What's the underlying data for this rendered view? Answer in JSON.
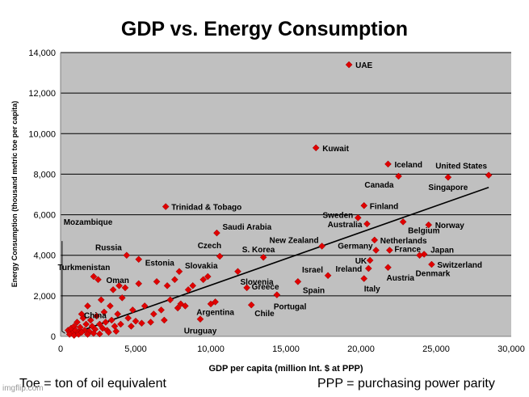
{
  "chart_data": {
    "type": "scatter",
    "title": "GDP vs. Energy Consumption",
    "xlabel": "GDP per capita (million Int. $ at PPP)",
    "ylabel": "Energy Consumption (thousand metric toe per capita)",
    "xlim": [
      0,
      30000
    ],
    "ylim": [
      0,
      14000
    ],
    "xticks": [
      "0",
      "5,000",
      "10,000",
      "15,000",
      "20,000",
      "25,000",
      "30,000"
    ],
    "yticks": [
      "0",
      "2,000",
      "4,000",
      "6,000",
      "8,000",
      "10,000",
      "12,000",
      "14,000"
    ],
    "grid": true,
    "legend": "none",
    "colors": {
      "marker": "#e00000",
      "background": "#c0c0c0",
      "trend": "#000000",
      "gridline": "#000000"
    },
    "labeled_points": [
      {
        "label": "UAE",
        "x": 19200,
        "y": 13400
      },
      {
        "label": "Kuwait",
        "x": 17000,
        "y": 9300
      },
      {
        "label": "Iceland",
        "x": 21800,
        "y": 8500
      },
      {
        "label": "Canada",
        "x": 22500,
        "y": 7900
      },
      {
        "label": "United States",
        "x": 28500,
        "y": 7950
      },
      {
        "label": "Singapore",
        "x": 25800,
        "y": 7850
      },
      {
        "label": "Trinidad & Tobago",
        "x": 7000,
        "y": 6400
      },
      {
        "label": "Sweden",
        "x": 19800,
        "y": 5850
      },
      {
        "label": "Finland",
        "x": 20200,
        "y": 6450
      },
      {
        "label": "Australia",
        "x": 20400,
        "y": 5550
      },
      {
        "label": "Norway",
        "x": 24500,
        "y": 5500
      },
      {
        "label": "Belgium",
        "x": 22800,
        "y": 5650
      },
      {
        "label": "Netherlands",
        "x": 20900,
        "y": 4750
      },
      {
        "label": "Saudi Arabia",
        "x": 10400,
        "y": 5100
      },
      {
        "label": "Russia",
        "x": 4400,
        "y": 4000
      },
      {
        "label": "Czech",
        "x": 10600,
        "y": 3950
      },
      {
        "label": "New Zealand",
        "x": 17400,
        "y": 4450
      },
      {
        "label": "Germany",
        "x": 21000,
        "y": 4250
      },
      {
        "label": "France",
        "x": 21900,
        "y": 4250
      },
      {
        "label": "Japan",
        "x": 24200,
        "y": 4050
      },
      {
        "label": "S. Korea",
        "x": 13500,
        "y": 3900
      },
      {
        "label": "Estonia",
        "x": 5200,
        "y": 3800
      },
      {
        "label": "UK",
        "x": 20600,
        "y": 3750
      },
      {
        "label": "Switzerland",
        "x": 24700,
        "y": 3550
      },
      {
        "label": "Denmark",
        "x": 23900,
        "y": 4000
      },
      {
        "label": "Turkmenistan",
        "x": 2200,
        "y": 2950
      },
      {
        "label": "Slovakia",
        "x": 7900,
        "y": 3200
      },
      {
        "label": "Ireland",
        "x": 20500,
        "y": 3350
      },
      {
        "label": "Israel",
        "x": 17800,
        "y": 3000
      },
      {
        "label": "Austria",
        "x": 21800,
        "y": 3400
      },
      {
        "label": "Oman",
        "x": 2500,
        "y": 2800
      },
      {
        "label": "Slovenia",
        "x": 11800,
        "y": 3200
      },
      {
        "label": "Greece",
        "x": 12400,
        "y": 2400
      },
      {
        "label": "Italy",
        "x": 20200,
        "y": 2850
      },
      {
        "label": "Spain",
        "x": 15800,
        "y": 2700
      },
      {
        "label": "Argentina",
        "x": 10300,
        "y": 1700
      },
      {
        "label": "Portugal",
        "x": 14400,
        "y": 2050
      },
      {
        "label": "Chile",
        "x": 12700,
        "y": 1550
      },
      {
        "label": "China",
        "x": 1400,
        "y": 1100
      },
      {
        "label": "Uruguay",
        "x": 9300,
        "y": 850
      },
      {
        "label": "Mozambique",
        "x": 200,
        "y": 400
      }
    ],
    "unlabeled_points": [
      {
        "x": 500,
        "y": 300
      },
      {
        "x": 600,
        "y": 200
      },
      {
        "x": 700,
        "y": 400
      },
      {
        "x": 800,
        "y": 150
      },
      {
        "x": 900,
        "y": 500
      },
      {
        "x": 1000,
        "y": 300
      },
      {
        "x": 1100,
        "y": 700
      },
      {
        "x": 1200,
        "y": 200
      },
      {
        "x": 1300,
        "y": 450
      },
      {
        "x": 1500,
        "y": 900
      },
      {
        "x": 1600,
        "y": 300
      },
      {
        "x": 1700,
        "y": 600
      },
      {
        "x": 1800,
        "y": 1500
      },
      {
        "x": 1900,
        "y": 250
      },
      {
        "x": 2000,
        "y": 800
      },
      {
        "x": 2100,
        "y": 500
      },
      {
        "x": 2300,
        "y": 350
      },
      {
        "x": 2400,
        "y": 1000
      },
      {
        "x": 2600,
        "y": 600
      },
      {
        "x": 2700,
        "y": 1800
      },
      {
        "x": 2800,
        "y": 400
      },
      {
        "x": 2900,
        "y": 1200
      },
      {
        "x": 3000,
        "y": 700
      },
      {
        "x": 3100,
        "y": 300
      },
      {
        "x": 3300,
        "y": 1500
      },
      {
        "x": 3400,
        "y": 800
      },
      {
        "x": 3500,
        "y": 2300
      },
      {
        "x": 3600,
        "y": 500
      },
      {
        "x": 3800,
        "y": 1100
      },
      {
        "x": 3900,
        "y": 2500
      },
      {
        "x": 4000,
        "y": 600
      },
      {
        "x": 4100,
        "y": 1900
      },
      {
        "x": 4300,
        "y": 2400
      },
      {
        "x": 4500,
        "y": 900
      },
      {
        "x": 4700,
        "y": 500
      },
      {
        "x": 4800,
        "y": 1300
      },
      {
        "x": 5000,
        "y": 750
      },
      {
        "x": 5200,
        "y": 2600
      },
      {
        "x": 5400,
        "y": 650
      },
      {
        "x": 5600,
        "y": 1500
      },
      {
        "x": 6000,
        "y": 700
      },
      {
        "x": 6200,
        "y": 1100
      },
      {
        "x": 6400,
        "y": 2700
      },
      {
        "x": 6700,
        "y": 1300
      },
      {
        "x": 6900,
        "y": 800
      },
      {
        "x": 7100,
        "y": 2500
      },
      {
        "x": 7300,
        "y": 1800
      },
      {
        "x": 7600,
        "y": 2800
      },
      {
        "x": 7800,
        "y": 1400
      },
      {
        "x": 8000,
        "y": 1600
      },
      {
        "x": 8300,
        "y": 1500
      },
      {
        "x": 8500,
        "y": 2300
      },
      {
        "x": 8800,
        "y": 2500
      },
      {
        "x": 9500,
        "y": 2800
      },
      {
        "x": 9800,
        "y": 2950
      },
      {
        "x": 10000,
        "y": 1600
      },
      {
        "x": 600,
        "y": 100
      },
      {
        "x": 900,
        "y": 50
      },
      {
        "x": 1200,
        "y": 100
      },
      {
        "x": 1400,
        "y": 200
      },
      {
        "x": 1800,
        "y": 100
      },
      {
        "x": 2200,
        "y": 150
      },
      {
        "x": 2600,
        "y": 120
      },
      {
        "x": 3200,
        "y": 200
      },
      {
        "x": 3700,
        "y": 250
      }
    ],
    "trendline": {
      "x": [
        500,
        28500
      ],
      "y": [
        50,
        7350
      ]
    },
    "mozambique_line": {
      "x": [
        100,
        100,
        300
      ],
      "y": [
        4700,
        250,
        150
      ]
    }
  },
  "footer": {
    "left_note": "Toe = ton of oil equivalent",
    "right_note": "PPP = purchasing power parity"
  },
  "watermark": "imgflip.com"
}
